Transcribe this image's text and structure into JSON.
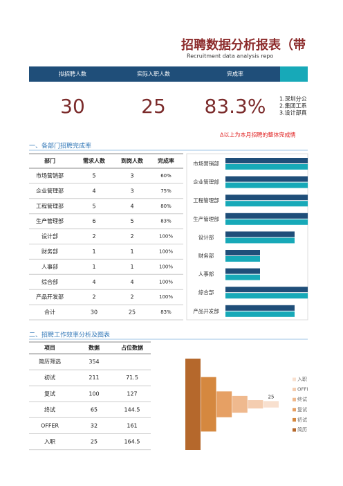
{
  "header": {
    "title": "招聘数据分析报表（带",
    "subtitle": "Recruitment data analysis repo"
  },
  "summary": {
    "columns": [
      "拟招聘人数",
      "实际入职人数",
      "完成率"
    ],
    "values": [
      "30",
      "25",
      "83.3%"
    ],
    "notes": [
      "1.深圳分公",
      "2.集团工系",
      "3.设计部真"
    ],
    "remark": "Δ以上为本月招聘的整体完成情"
  },
  "section1": {
    "title": "一、各部门招聘完成率",
    "table": {
      "columns": [
        "部门",
        "需求人数",
        "到岗人数",
        "完成率"
      ],
      "rows": [
        [
          "市场营销部",
          5,
          3,
          "60%"
        ],
        [
          "企业管理部",
          4,
          3,
          "75%"
        ],
        [
          "工程管理部",
          5,
          4,
          "80%"
        ],
        [
          "生产管理部",
          6,
          5,
          "83%"
        ],
        [
          "设计部",
          2,
          2,
          "100%"
        ],
        [
          "财务部",
          1,
          1,
          "100%"
        ],
        [
          "人事部",
          1,
          1,
          "100%"
        ],
        [
          "综合部",
          4,
          4,
          "100%"
        ],
        [
          "产品开发部",
          2,
          2,
          "100%"
        ],
        [
          "合计",
          30,
          25,
          "83%"
        ]
      ]
    },
    "chart": {
      "type": "bar",
      "xlim": [
        0,
        2.4
      ],
      "colors": [
        "#1f4e79",
        "#17a9b8"
      ]
    }
  },
  "section2": {
    "title": "二、招聘工作效率分析及图表",
    "table": {
      "columns": [
        "项目",
        "数据",
        "占位数据"
      ],
      "rows": [
        [
          "简历筛选",
          354,
          null
        ],
        [
          "初试",
          211,
          71.5
        ],
        [
          "复试",
          100,
          127
        ],
        [
          "终试",
          65,
          144.5
        ],
        [
          "OFFER",
          32,
          161
        ],
        [
          "入职",
          25,
          164.5
        ]
      ]
    },
    "chart": {
      "type": "bar",
      "ylim": [
        0,
        354
      ],
      "legend": [
        "入职",
        "OFFER",
        "终试",
        "复试",
        "初试",
        "简历"
      ],
      "colors": [
        "#b5682c",
        "#d5883f",
        "#e6a064",
        "#efb98e",
        "#f4cdb0",
        "#f8e0cf"
      ]
    }
  }
}
